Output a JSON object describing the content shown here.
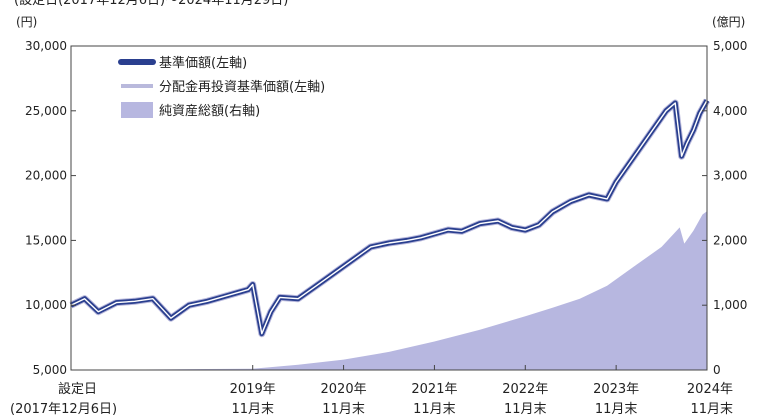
{
  "chart_data": {
    "type": "line",
    "top_note": "(設定日(2017年12月6日)～2024年11月29日)",
    "left_unit": "(円)",
    "right_unit": "(億円)",
    "left_ylim": [
      5000,
      30000
    ],
    "right_ylim": [
      0,
      5000
    ],
    "left_ticks": [
      "5,000",
      "10,000",
      "15,000",
      "20,000",
      "25,000",
      "30,000"
    ],
    "right_ticks": [
      "0",
      "1,000",
      "2,000",
      "3,000",
      "4,000",
      "5,000"
    ],
    "x_labels": [
      {
        "line1": "設定日",
        "line2": "(2017年12月6日)",
        "t": 0
      },
      {
        "line1": "2019年",
        "line2": "11月末",
        "t": 2
      },
      {
        "line1": "2020年",
        "line2": "11月末",
        "t": 3
      },
      {
        "line1": "2021年",
        "line2": "11月末",
        "t": 4
      },
      {
        "line1": "2022年",
        "line2": "11月末",
        "t": 5
      },
      {
        "line1": "2023年",
        "line2": "11月末",
        "t": 6
      },
      {
        "line1": "2024年",
        "line2": "11月末",
        "t": 7
      }
    ],
    "legend": [
      {
        "label": "基準価額(左軸)",
        "kind": "nav"
      },
      {
        "label": "分配金再投資基準価額(左軸)",
        "kind": "reinvest"
      },
      {
        "label": "純資産総額(右軸)",
        "kind": "assets"
      }
    ],
    "colors": {
      "nav_outer": "#2a3f8f",
      "nav_inner": "#ffffff",
      "reinvest": "#b9b9dc",
      "assets": "#b7b7e0",
      "frame": "#444444"
    },
    "x_axis_note": "x values in years since 設定日 (2017-12-06); 2017年12月 – 2024年11月",
    "series": [
      {
        "kind": "nav",
        "x": [
          0,
          0.15,
          0.3,
          0.5,
          0.7,
          0.9,
          1.1,
          1.3,
          1.5,
          1.7,
          1.85,
          1.95,
          2.0,
          2.1,
          2.2,
          2.3,
          2.5,
          2.7,
          2.9,
          3.1,
          3.3,
          3.5,
          3.7,
          3.85,
          4.0,
          4.15,
          4.3,
          4.5,
          4.7,
          4.85,
          5.0,
          5.15,
          5.3,
          5.5,
          5.7,
          5.9,
          6.0,
          6.15,
          6.3,
          6.45,
          6.55,
          6.65,
          6.72,
          6.78,
          6.85,
          6.92,
          7.0
        ],
        "y": [
          10000,
          10500,
          9500,
          10200,
          10300,
          10500,
          9000,
          10000,
          10300,
          10700,
          11000,
          11200,
          11600,
          7800,
          9500,
          10600,
          10500,
          11500,
          12500,
          13500,
          14500,
          14800,
          15000,
          15200,
          15500,
          15800,
          15700,
          16300,
          16500,
          16000,
          15800,
          16200,
          17200,
          18000,
          18500,
          18200,
          19500,
          21000,
          22500,
          24000,
          25000,
          25600,
          21500,
          22500,
          23500,
          24800,
          25800
        ]
      },
      {
        "kind": "reinvest",
        "x": [
          0,
          0.15,
          0.3,
          0.5,
          0.7,
          0.9,
          1.1,
          1.3,
          1.5,
          1.7,
          1.85,
          1.95,
          2.0,
          2.1,
          2.2,
          2.3,
          2.5,
          2.7,
          2.9,
          3.1,
          3.3,
          3.5,
          3.7,
          3.85,
          4.0,
          4.15,
          4.3,
          4.5,
          4.7,
          4.85,
          5.0,
          5.15,
          5.3,
          5.5,
          5.7,
          5.9,
          6.0,
          6.15,
          6.3,
          6.45,
          6.55,
          6.65,
          6.72,
          6.78,
          6.85,
          6.92,
          7.0
        ],
        "y": [
          10000,
          10500,
          9500,
          10200,
          10300,
          10500,
          9000,
          10000,
          10300,
          10700,
          11000,
          11200,
          11600,
          7800,
          9500,
          10600,
          10500,
          11500,
          12500,
          13500,
          14500,
          14800,
          15000,
          15200,
          15500,
          15800,
          15700,
          16300,
          16500,
          16000,
          15800,
          16200,
          17200,
          18000,
          18500,
          18200,
          19500,
          21000,
          22500,
          24000,
          25000,
          25600,
          21500,
          22500,
          23500,
          24800,
          25800
        ]
      },
      {
        "kind": "assets",
        "x": [
          0,
          0.5,
          1.0,
          1.5,
          2.0,
          2.5,
          3.0,
          3.5,
          4.0,
          4.5,
          5.0,
          5.3,
          5.6,
          5.9,
          6.2,
          6.5,
          6.7,
          6.75,
          6.85,
          6.95,
          7.0
        ],
        "y": [
          0,
          5,
          10,
          15,
          20,
          80,
          160,
          280,
          440,
          620,
          830,
          960,
          1100,
          1300,
          1600,
          1900,
          2200,
          1950,
          2150,
          2400,
          2450
        ]
      }
    ]
  }
}
